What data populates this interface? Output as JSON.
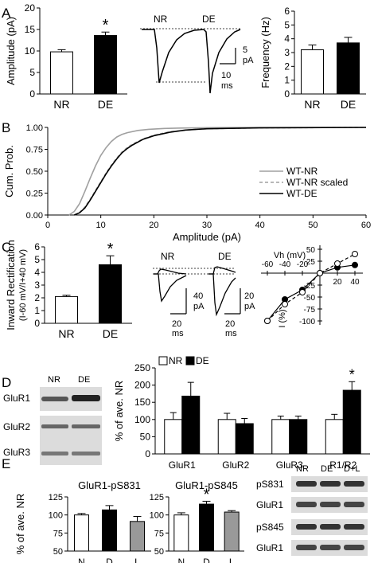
{
  "panel_labels": {
    "A": "A",
    "B": "B",
    "C": "C",
    "D": "D",
    "E": "E"
  },
  "colors": {
    "nr": "#ffffff",
    "de": "#000000",
    "l": "#999999",
    "wt_nr": "#a0a0a0",
    "wt_de": "#000000",
    "blot_bg": "#dcdcdc",
    "blot_band": "#2a2a2a"
  },
  "a_trace": {
    "labels": [
      "NR",
      "DE"
    ],
    "scale_y": [
      "5",
      "pA"
    ],
    "scale_x": [
      "10",
      "ms"
    ]
  },
  "c_trace": {
    "labels": [
      "NR",
      "DE"
    ],
    "scale1_y": [
      "40",
      "pA"
    ],
    "scale1_x": [
      "20",
      "ms"
    ],
    "scale2_y": [
      "20",
      "pA"
    ],
    "scale2_x": [
      "20",
      "ms"
    ]
  },
  "d_blot": {
    "lanes": [
      "NR",
      "DE"
    ],
    "rows": [
      "GluR1",
      "GluR2",
      "GluR3"
    ]
  },
  "e_blot": {
    "lanes": [
      "NR",
      "DE",
      "D+L"
    ],
    "rows": [
      "pS831",
      "GluR1",
      "pS845",
      "GluR1"
    ]
  },
  "chart_data": [
    {
      "id": "A_amp",
      "type": "bar",
      "categories": [
        "NR",
        "DE"
      ],
      "values": [
        9.8,
        13.6
      ],
      "errors": [
        0.5,
        0.8
      ],
      "fills": [
        "nr",
        "de"
      ],
      "ylabel": "Amplitude (pA)",
      "ylim": [
        0,
        20
      ],
      "yticks": [
        "0",
        "5",
        "10",
        "15",
        "20"
      ],
      "sig": [
        "",
        "*"
      ]
    },
    {
      "id": "A_freq",
      "type": "bar",
      "categories": [
        "NR",
        "DE"
      ],
      "values": [
        3.2,
        3.7
      ],
      "errors": [
        0.35,
        0.4
      ],
      "fills": [
        "nr",
        "de"
      ],
      "ylabel": "Frequency (Hz)",
      "ylim": [
        0,
        6
      ],
      "yticks": [
        "0",
        "1",
        "2",
        "3",
        "4",
        "5",
        "6"
      ],
      "sig": [
        "",
        ""
      ]
    },
    {
      "id": "B_cum",
      "type": "line",
      "xlabel": "Amplitude (pA)",
      "ylabel": "Cum. Prob.",
      "xlim": [
        0,
        60
      ],
      "ylim": [
        0,
        1
      ],
      "xticks": [
        "0",
        "10",
        "20",
        "30",
        "40",
        "50",
        "60"
      ],
      "yticks": [
        "0.00",
        "0.25",
        "0.50",
        "0.75",
        "1.00"
      ],
      "series": [
        {
          "name": "WT-NR",
          "color": "wt_nr",
          "dash": "",
          "x": [
            4,
            5,
            6,
            7,
            8,
            9,
            10,
            11,
            12,
            13,
            14,
            15,
            17,
            19,
            22,
            25,
            30,
            40,
            60
          ],
          "y": [
            0,
            0.04,
            0.13,
            0.27,
            0.42,
            0.56,
            0.68,
            0.77,
            0.84,
            0.89,
            0.92,
            0.94,
            0.965,
            0.978,
            0.988,
            0.993,
            0.997,
            1,
            1
          ]
        },
        {
          "name": "WT-NR scaled",
          "color": "wt_nr",
          "dash": "4,3",
          "x": [
            5,
            6,
            7,
            8,
            9,
            10,
            11,
            12,
            13,
            14,
            15,
            16,
            18,
            20,
            23,
            26,
            30,
            40,
            60
          ],
          "y": [
            0,
            0.03,
            0.09,
            0.18,
            0.28,
            0.38,
            0.48,
            0.57,
            0.65,
            0.72,
            0.77,
            0.81,
            0.87,
            0.91,
            0.95,
            0.97,
            0.985,
            0.995,
            1
          ]
        },
        {
          "name": "WT-DE",
          "color": "wt_de",
          "dash": "",
          "x": [
            5,
            6,
            7,
            8,
            9,
            10,
            11,
            12,
            13,
            14,
            15,
            16,
            18,
            20,
            23,
            26,
            30,
            40,
            60
          ],
          "y": [
            0,
            0.025,
            0.08,
            0.17,
            0.27,
            0.37,
            0.47,
            0.56,
            0.64,
            0.71,
            0.76,
            0.8,
            0.865,
            0.905,
            0.945,
            0.97,
            0.985,
            0.995,
            1
          ]
        }
      ]
    },
    {
      "id": "C_rect",
      "type": "bar",
      "categories": [
        "NR",
        "DE"
      ],
      "values": [
        2.1,
        4.6
      ],
      "errors": [
        0.1,
        0.7
      ],
      "fills": [
        "nr",
        "de"
      ],
      "ylabel": "Inward Rectification",
      "ylabel2": "(I-60 mV/I+40 mV)",
      "ylim": [
        0,
        6
      ],
      "yticks": [
        "0",
        "1",
        "2",
        "3",
        "4",
        "5",
        "6"
      ],
      "sig": [
        "",
        "*"
      ]
    },
    {
      "id": "C_iv",
      "type": "line",
      "xlabel": "Vh (mV)",
      "ylabel": "I (%)",
      "xlim": [
        -60,
        40
      ],
      "ylim": [
        -100,
        50
      ],
      "xticks": [
        "-60",
        "-40",
        "-20",
        "20",
        "40"
      ],
      "yticks": [
        "50",
        "25",
        "-25",
        "-50",
        "-75",
        "-100"
      ],
      "series": [
        {
          "name": "DE",
          "fill": "de",
          "dash": "",
          "x": [
            -60,
            -40,
            -20,
            0,
            20,
            40
          ],
          "y": [
            -100,
            -55,
            -35,
            0,
            12,
            17
          ]
        },
        {
          "name": "NR",
          "fill": "nr",
          "dash": "4,3",
          "x": [
            -60,
            -40,
            -20,
            0,
            20,
            40
          ],
          "y": [
            -100,
            -65,
            -40,
            0,
            20,
            40
          ]
        }
      ]
    },
    {
      "id": "D_bar",
      "type": "bar",
      "ylabel": "% of ave. NR",
      "ylim": [
        0,
        250
      ],
      "yticks": [
        "0",
        "50",
        "100",
        "150",
        "200",
        "250"
      ],
      "categories": [
        "GluR1",
        "GluR2",
        "GluR3",
        "R1/R2"
      ],
      "series": [
        {
          "name": "NR",
          "fill": "nr",
          "values": [
            100,
            100,
            100,
            100
          ],
          "errors": [
            20,
            18,
            10,
            15
          ]
        },
        {
          "name": "DE",
          "fill": "de",
          "values": [
            168,
            88,
            100,
            185
          ],
          "errors": [
            40,
            15,
            10,
            25
          ]
        }
      ],
      "sig": [
        "",
        "",
        "",
        "*"
      ]
    },
    {
      "id": "E_831",
      "type": "bar",
      "title": "GluR1-pS831",
      "categories": [
        "N",
        "D",
        "L"
      ],
      "values": [
        100,
        107,
        91
      ],
      "errors": [
        2,
        6,
        7
      ],
      "fills": [
        "nr",
        "de",
        "l"
      ],
      "ylabel": "% of ave. NR",
      "ylim": [
        50,
        125
      ],
      "yticks": [
        "50",
        "75",
        "100",
        "125"
      ],
      "sig": [
        "",
        "",
        ""
      ]
    },
    {
      "id": "E_845",
      "type": "bar",
      "title": "GluR1-pS845",
      "categories": [
        "N",
        "D",
        "L"
      ],
      "values": [
        100,
        115,
        104
      ],
      "errors": [
        3,
        4,
        2
      ],
      "fills": [
        "nr",
        "de",
        "l"
      ],
      "ylim": [
        50,
        125
      ],
      "yticks": [
        "50",
        "75",
        "100",
        "125"
      ],
      "sig": [
        "",
        "*",
        ""
      ]
    }
  ]
}
